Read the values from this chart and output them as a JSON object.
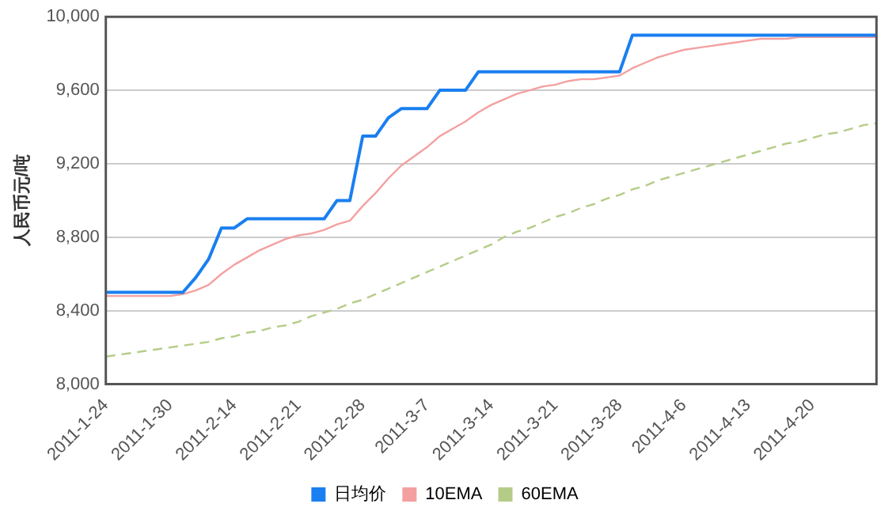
{
  "chart_data": {
    "type": "line",
    "ylabel": "人民币元/吨",
    "categories": [
      "2011-1-24",
      null,
      null,
      null,
      null,
      "2011-1-30",
      null,
      null,
      null,
      null,
      "2011-2-14",
      null,
      null,
      null,
      null,
      "2011-2-21",
      null,
      null,
      null,
      null,
      "2011-2-28",
      null,
      null,
      null,
      null,
      "2011-3-7",
      null,
      null,
      null,
      null,
      "2011-3-14",
      null,
      null,
      null,
      null,
      "2011-3-21",
      null,
      null,
      null,
      null,
      "2011-3-28",
      null,
      null,
      null,
      null,
      "2011-4-6",
      null,
      null,
      null,
      null,
      "2011-4-13",
      null,
      null,
      null,
      null,
      "2011-4-20",
      null,
      null,
      null,
      null,
      null
    ],
    "series": [
      {
        "name": "日均价",
        "color": "#1a7ff0",
        "line_style": "solid",
        "values": [
          8500,
          8500,
          8500,
          8500,
          8500,
          8500,
          8500,
          8580,
          8680,
          8850,
          8850,
          8900,
          8900,
          8900,
          8900,
          8900,
          8900,
          8900,
          9000,
          9000,
          9350,
          9350,
          9450,
          9500,
          9500,
          9500,
          9600,
          9600,
          9600,
          9700,
          9700,
          9700,
          9700,
          9700,
          9700,
          9700,
          9700,
          9700,
          9700,
          9700,
          9700,
          9900,
          9900,
          9900,
          9900,
          9900,
          9900,
          9900,
          9900,
          9900,
          9900,
          9900,
          9900,
          9900,
          9900,
          9900,
          9900,
          9900,
          9900,
          9900,
          9900
        ]
      },
      {
        "name": "10EMA",
        "color": "#f4a0a0",
        "line_style": "solid",
        "values": [
          8480,
          8480,
          8480,
          8480,
          8480,
          8480,
          8490,
          8510,
          8540,
          8600,
          8650,
          8690,
          8730,
          8760,
          8790,
          8810,
          8820,
          8840,
          8870,
          8890,
          8970,
          9040,
          9120,
          9190,
          9240,
          9290,
          9350,
          9390,
          9430,
          9480,
          9520,
          9550,
          9580,
          9600,
          9620,
          9630,
          9650,
          9660,
          9660,
          9670,
          9680,
          9720,
          9750,
          9780,
          9800,
          9820,
          9830,
          9840,
          9850,
          9860,
          9870,
          9880,
          9880,
          9880,
          9890,
          9890,
          9890,
          9890,
          9890,
          9890,
          9890
        ]
      },
      {
        "name": "60EMA",
        "color": "#b5cc88",
        "line_style": "dashed",
        "values": [
          8150,
          8160,
          8170,
          8180,
          8190,
          8200,
          8210,
          8220,
          8230,
          8250,
          8260,
          8280,
          8290,
          8310,
          8320,
          8340,
          8370,
          8390,
          8410,
          8440,
          8460,
          8490,
          8520,
          8550,
          8580,
          8610,
          8640,
          8670,
          8700,
          8730,
          8760,
          8800,
          8830,
          8850,
          8880,
          8910,
          8930,
          8960,
          8980,
          9010,
          9030,
          9060,
          9080,
          9110,
          9130,
          9150,
          9170,
          9190,
          9210,
          9230,
          9250,
          9270,
          9290,
          9310,
          9320,
          9340,
          9360,
          9370,
          9390,
          9410,
          9420
        ]
      }
    ],
    "ylim": [
      8000,
      10000
    ],
    "yticks": [
      {
        "value": 8000,
        "label": "8,000"
      },
      {
        "value": 8400,
        "label": "8,400"
      },
      {
        "value": 8800,
        "label": "8,800"
      },
      {
        "value": 9200,
        "label": "9,200"
      },
      {
        "value": 9600,
        "label": "9,600"
      },
      {
        "value": 10000,
        "label": "10,000"
      }
    ],
    "grid": "y",
    "legend": "bottom",
    "marker": "none"
  }
}
